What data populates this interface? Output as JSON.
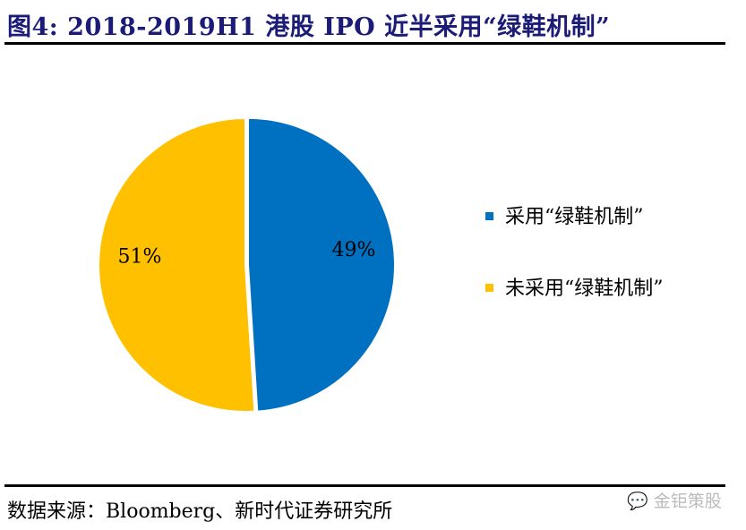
{
  "title": "图4:   2018-2019H1 港股 IPO 近半采用“绿鞋机制”",
  "source": "数据来源：Bloomberg、新时代证券研究所",
  "watermark": "金钜策股",
  "chart_data": {
    "type": "pie",
    "slices": [
      {
        "name": "采用“绿鞋机制”",
        "value": 49,
        "label": "49%",
        "color": "#0070C0"
      },
      {
        "name": "未采用“绿鞋机制”",
        "value": 51,
        "label": "51%",
        "color": "#FFC000"
      }
    ],
    "legend_position": "right"
  }
}
